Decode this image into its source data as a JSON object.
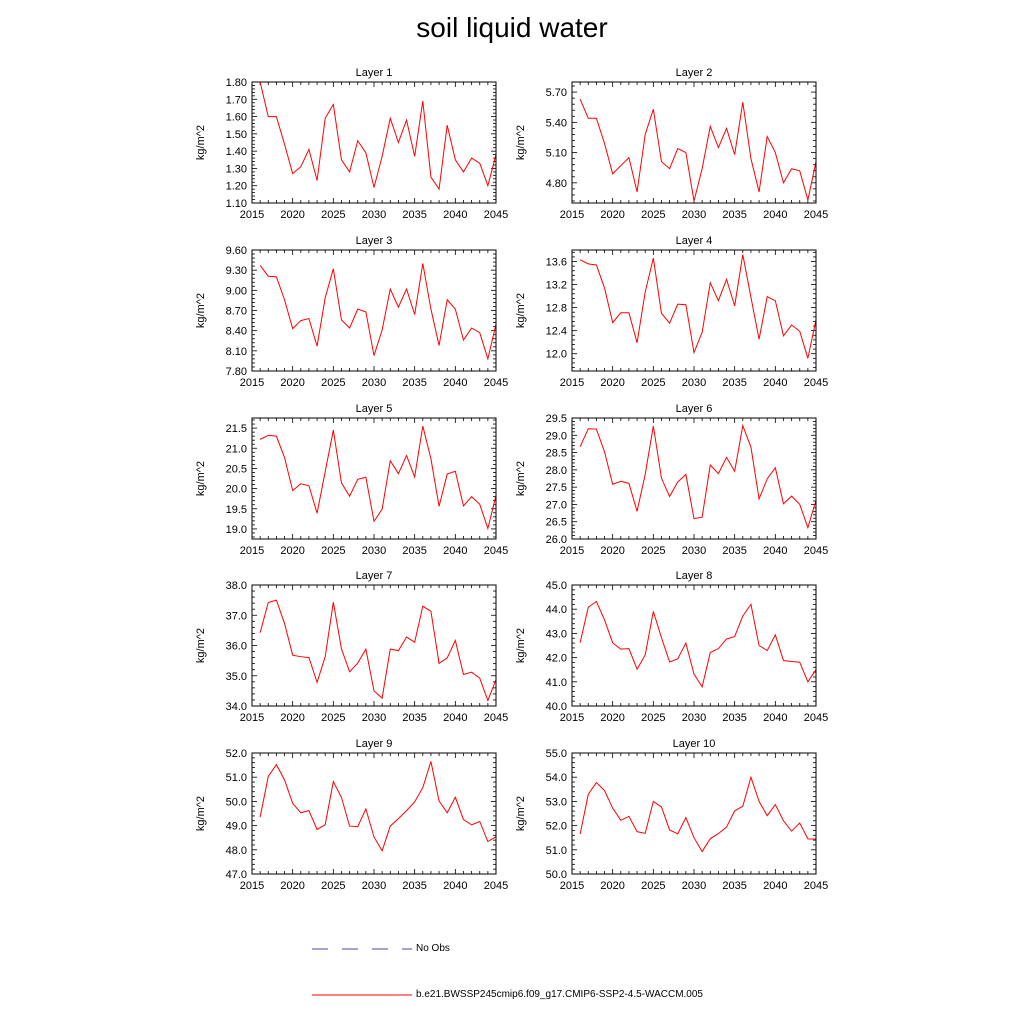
{
  "title": "soil liquid water",
  "legend": {
    "entries": [
      {
        "label": "No Obs",
        "color": "#4a4a9a",
        "style": "dashed"
      },
      {
        "label": "b.e21.BWSSP245cmip6.f09_g17.CMIP6-SSP2-4.5-WACCM.005",
        "color": "#ff0000",
        "style": "solid"
      }
    ]
  },
  "chart_data": [
    {
      "type": "line",
      "title": "Layer 1",
      "ylabel": "kg/m^2",
      "xlim": [
        2015,
        2045
      ],
      "ylim": [
        1.1,
        1.8
      ],
      "yticks": [
        "1.10",
        "1.20",
        "1.30",
        "1.40",
        "1.50",
        "1.60",
        "1.70",
        "1.80"
      ],
      "ytick_values": [
        1.1,
        1.2,
        1.3,
        1.4,
        1.5,
        1.6,
        1.7,
        1.8
      ],
      "xticks": [
        "2015",
        "2020",
        "2025",
        "2030",
        "2035",
        "2040",
        "2045"
      ],
      "xtick_values": [
        2015,
        2020,
        2025,
        2030,
        2035,
        2040,
        2045
      ],
      "x": [
        2016,
        2017,
        2018,
        2019,
        2020,
        2021,
        2022,
        2023,
        2024,
        2025,
        2026,
        2027,
        2028,
        2029,
        2030,
        2031,
        2032,
        2033,
        2034,
        2035,
        2036,
        2037,
        2038,
        2039,
        2040,
        2041,
        2042,
        2043,
        2044,
        2045
      ],
      "series": [
        {
          "color": "#ff0000",
          "values": [
            1.8,
            1.6,
            1.6,
            1.44,
            1.27,
            1.31,
            1.41,
            1.23,
            1.59,
            1.67,
            1.35,
            1.28,
            1.46,
            1.39,
            1.19,
            1.37,
            1.59,
            1.45,
            1.58,
            1.37,
            1.69,
            1.25,
            1.18,
            1.55,
            1.35,
            1.28,
            1.36,
            1.33,
            1.2,
            1.38
          ]
        }
      ]
    },
    {
      "type": "line",
      "title": "Layer 2",
      "ylabel": "kg/m^2",
      "xlim": [
        2015,
        2045
      ],
      "ylim": [
        4.6,
        5.8
      ],
      "yticks": [
        "4.80",
        "5.10",
        "5.40",
        "5.70"
      ],
      "ytick_values": [
        4.8,
        5.1,
        5.4,
        5.7
      ],
      "xticks": [
        "2015",
        "2020",
        "2025",
        "2030",
        "2035",
        "2040",
        "2045"
      ],
      "xtick_values": [
        2015,
        2020,
        2025,
        2030,
        2035,
        2040,
        2045
      ],
      "x": [
        2016,
        2017,
        2018,
        2019,
        2020,
        2021,
        2022,
        2023,
        2024,
        2025,
        2026,
        2027,
        2028,
        2029,
        2030,
        2031,
        2032,
        2033,
        2034,
        2035,
        2036,
        2037,
        2038,
        2039,
        2040,
        2041,
        2042,
        2043,
        2044,
        2045
      ],
      "series": [
        {
          "color": "#ff0000",
          "values": [
            5.63,
            5.44,
            5.44,
            5.19,
            4.89,
            4.97,
            5.05,
            4.71,
            5.28,
            5.53,
            5.01,
            4.94,
            5.14,
            5.1,
            4.62,
            4.94,
            5.36,
            5.15,
            5.34,
            5.08,
            5.6,
            5.04,
            4.71,
            5.26,
            5.1,
            4.8,
            4.94,
            4.92,
            4.63,
            5.01
          ]
        }
      ]
    },
    {
      "type": "line",
      "title": "Layer 3",
      "ylabel": "kg/m^2",
      "xlim": [
        2015,
        2045
      ],
      "ylim": [
        7.8,
        9.6
      ],
      "yticks": [
        "7.80",
        "8.10",
        "8.40",
        "8.70",
        "9.00",
        "9.30",
        "9.60"
      ],
      "ytick_values": [
        7.8,
        8.1,
        8.4,
        8.7,
        9.0,
        9.3,
        9.6
      ],
      "xticks": [
        "2015",
        "2020",
        "2025",
        "2030",
        "2035",
        "2040",
        "2045"
      ],
      "xtick_values": [
        2015,
        2020,
        2025,
        2030,
        2035,
        2040,
        2045
      ],
      "x": [
        2016,
        2017,
        2018,
        2019,
        2020,
        2021,
        2022,
        2023,
        2024,
        2025,
        2026,
        2027,
        2028,
        2029,
        2030,
        2031,
        2032,
        2033,
        2034,
        2035,
        2036,
        2037,
        2038,
        2039,
        2040,
        2041,
        2042,
        2043,
        2044,
        2045
      ],
      "series": [
        {
          "color": "#ff0000",
          "values": [
            9.37,
            9.21,
            9.2,
            8.86,
            8.43,
            8.55,
            8.58,
            8.17,
            8.89,
            9.32,
            8.56,
            8.44,
            8.72,
            8.68,
            8.03,
            8.41,
            9.02,
            8.75,
            9.02,
            8.64,
            9.4,
            8.72,
            8.18,
            8.86,
            8.72,
            8.26,
            8.44,
            8.37,
            7.98,
            8.5
          ]
        }
      ]
    },
    {
      "type": "line",
      "title": "Layer 4",
      "ylabel": "kg/m^2",
      "xlim": [
        2015,
        2045
      ],
      "ylim": [
        11.7,
        13.8
      ],
      "yticks": [
        "12.0",
        "12.4",
        "12.8",
        "13.2",
        "13.6"
      ],
      "ytick_values": [
        12.0,
        12.4,
        12.8,
        13.2,
        13.6
      ],
      "xticks": [
        "2015",
        "2020",
        "2025",
        "2030",
        "2035",
        "2040",
        "2045"
      ],
      "xtick_values": [
        2015,
        2020,
        2025,
        2030,
        2035,
        2040,
        2045
      ],
      "x": [
        2016,
        2017,
        2018,
        2019,
        2020,
        2021,
        2022,
        2023,
        2024,
        2025,
        2026,
        2027,
        2028,
        2029,
        2030,
        2031,
        2032,
        2033,
        2034,
        2035,
        2036,
        2037,
        2038,
        2039,
        2040,
        2041,
        2042,
        2043,
        2044,
        2045
      ],
      "series": [
        {
          "color": "#ff0000",
          "values": [
            13.63,
            13.56,
            13.54,
            13.14,
            12.54,
            12.71,
            12.71,
            12.19,
            13.07,
            13.66,
            12.7,
            12.53,
            12.86,
            12.85,
            12.02,
            12.37,
            13.23,
            12.92,
            13.29,
            12.83,
            13.72,
            12.98,
            12.25,
            12.99,
            12.92,
            12.31,
            12.5,
            12.39,
            11.92,
            12.59
          ]
        }
      ]
    },
    {
      "type": "line",
      "title": "Layer 5",
      "ylabel": "kg/m^2",
      "xlim": [
        2015,
        2045
      ],
      "ylim": [
        18.75,
        21.75
      ],
      "yticks": [
        "19.0",
        "19.5",
        "20.0",
        "20.5",
        "21.0",
        "21.5"
      ],
      "ytick_values": [
        19.0,
        19.5,
        20.0,
        20.5,
        21.0,
        21.5
      ],
      "xticks": [
        "2015",
        "2020",
        "2025",
        "2030",
        "2035",
        "2040",
        "2045"
      ],
      "xtick_values": [
        2015,
        2020,
        2025,
        2030,
        2035,
        2040,
        2045
      ],
      "x": [
        2016,
        2017,
        2018,
        2019,
        2020,
        2021,
        2022,
        2023,
        2024,
        2025,
        2026,
        2027,
        2028,
        2029,
        2030,
        2031,
        2032,
        2033,
        2034,
        2035,
        2036,
        2037,
        2038,
        2039,
        2040,
        2041,
        2042,
        2043,
        2044,
        2045
      ],
      "series": [
        {
          "color": "#ff0000",
          "values": [
            21.22,
            21.32,
            21.3,
            20.77,
            19.95,
            20.12,
            20.07,
            19.39,
            20.42,
            21.45,
            20.14,
            19.81,
            20.23,
            20.28,
            19.19,
            19.49,
            20.69,
            20.37,
            20.82,
            20.29,
            21.55,
            20.74,
            19.56,
            20.36,
            20.43,
            19.57,
            19.8,
            19.61,
            19.01,
            19.83
          ]
        }
      ]
    },
    {
      "type": "line",
      "title": "Layer 6",
      "ylabel": "kg/m^2",
      "xlim": [
        2015,
        2045
      ],
      "ylim": [
        26.0,
        29.5
      ],
      "yticks": [
        "26.0",
        "26.5",
        "27.0",
        "27.5",
        "28.0",
        "28.5",
        "29.0",
        "29.5"
      ],
      "ytick_values": [
        26.0,
        26.5,
        27.0,
        27.5,
        28.0,
        28.5,
        29.0,
        29.5
      ],
      "xticks": [
        "2015",
        "2020",
        "2025",
        "2030",
        "2035",
        "2040",
        "2045"
      ],
      "xtick_values": [
        2015,
        2020,
        2025,
        2030,
        2035,
        2040,
        2045
      ],
      "x": [
        2016,
        2017,
        2018,
        2019,
        2020,
        2021,
        2022,
        2023,
        2024,
        2025,
        2026,
        2027,
        2028,
        2029,
        2030,
        2031,
        2032,
        2033,
        2034,
        2035,
        2036,
        2037,
        2038,
        2039,
        2040,
        2041,
        2042,
        2043,
        2044,
        2045
      ],
      "series": [
        {
          "color": "#ff0000",
          "values": [
            28.67,
            29.19,
            29.18,
            28.52,
            27.58,
            27.67,
            27.61,
            26.8,
            27.87,
            29.27,
            27.76,
            27.23,
            27.65,
            27.87,
            26.59,
            26.63,
            28.14,
            27.89,
            28.36,
            27.96,
            29.28,
            28.66,
            27.16,
            27.74,
            28.06,
            27.02,
            27.24,
            27.0,
            26.33,
            27.12
          ]
        }
      ]
    },
    {
      "type": "line",
      "title": "Layer 7",
      "ylabel": "kg/m^2",
      "xlim": [
        2015,
        2045
      ],
      "ylim": [
        34.0,
        38.0
      ],
      "yticks": [
        "34.0",
        "35.0",
        "36.0",
        "37.0",
        "38.0"
      ],
      "ytick_values": [
        34.0,
        35.0,
        36.0,
        37.0,
        38.0
      ],
      "xticks": [
        "2015",
        "2020",
        "2025",
        "2030",
        "2035",
        "2040",
        "2045"
      ],
      "xtick_values": [
        2015,
        2020,
        2025,
        2030,
        2035,
        2040,
        2045
      ],
      "x": [
        2016,
        2017,
        2018,
        2019,
        2020,
        2021,
        2022,
        2023,
        2024,
        2025,
        2026,
        2027,
        2028,
        2029,
        2030,
        2031,
        2032,
        2033,
        2034,
        2035,
        2036,
        2037,
        2038,
        2039,
        2040,
        2041,
        2042,
        2043,
        2044,
        2045
      ],
      "series": [
        {
          "color": "#ff0000",
          "values": [
            36.42,
            37.42,
            37.5,
            36.73,
            35.68,
            35.63,
            35.6,
            34.78,
            35.63,
            37.43,
            35.89,
            35.13,
            35.42,
            35.88,
            34.5,
            34.26,
            35.88,
            35.83,
            36.28,
            36.11,
            37.3,
            37.13,
            35.41,
            35.59,
            36.17,
            35.04,
            35.12,
            34.92,
            34.18,
            34.87
          ]
        }
      ]
    },
    {
      "type": "line",
      "title": "Layer 8",
      "ylabel": "kg/m^2",
      "xlim": [
        2015,
        2045
      ],
      "ylim": [
        40.0,
        45.0
      ],
      "yticks": [
        "40.0",
        "41.0",
        "42.0",
        "43.0",
        "44.0",
        "45.0"
      ],
      "ytick_values": [
        40.0,
        41.0,
        42.0,
        43.0,
        44.0,
        45.0
      ],
      "xticks": [
        "2015",
        "2020",
        "2025",
        "2030",
        "2035",
        "2040",
        "2045"
      ],
      "xtick_values": [
        2015,
        2020,
        2025,
        2030,
        2035,
        2040,
        2045
      ],
      "x": [
        2016,
        2017,
        2018,
        2019,
        2020,
        2021,
        2022,
        2023,
        2024,
        2025,
        2026,
        2027,
        2028,
        2029,
        2030,
        2031,
        2032,
        2033,
        2034,
        2035,
        2036,
        2037,
        2038,
        2039,
        2040,
        2041,
        2042,
        2043,
        2044,
        2045
      ],
      "series": [
        {
          "color": "#ff0000",
          "values": [
            42.62,
            44.08,
            44.32,
            43.56,
            42.61,
            42.35,
            42.37,
            41.52,
            42.11,
            43.91,
            42.82,
            41.82,
            41.95,
            42.6,
            41.32,
            40.79,
            42.21,
            42.37,
            42.77,
            42.87,
            43.72,
            44.2,
            42.5,
            42.29,
            42.94,
            41.88,
            41.84,
            41.81,
            41.0,
            41.5
          ]
        }
      ]
    },
    {
      "type": "line",
      "title": "Layer 9",
      "ylabel": "kg/m^2",
      "xlim": [
        2015,
        2045
      ],
      "ylim": [
        47.0,
        52.0
      ],
      "yticks": [
        "47.0",
        "48.0",
        "49.0",
        "50.0",
        "51.0",
        "52.0"
      ],
      "ytick_values": [
        47.0,
        48.0,
        49.0,
        50.0,
        51.0,
        52.0
      ],
      "xticks": [
        "2015",
        "2020",
        "2025",
        "2030",
        "2035",
        "2040",
        "2045"
      ],
      "xtick_values": [
        2015,
        2020,
        2025,
        2030,
        2035,
        2040,
        2045
      ],
      "x": [
        2016,
        2017,
        2018,
        2019,
        2020,
        2021,
        2022,
        2023,
        2024,
        2025,
        2026,
        2027,
        2028,
        2029,
        2030,
        2031,
        2032,
        2033,
        2034,
        2035,
        2036,
        2037,
        2038,
        2039,
        2040,
        2041,
        2042,
        2043,
        2044,
        2045
      ],
      "series": [
        {
          "color": "#ff0000",
          "values": [
            49.35,
            51.03,
            51.52,
            50.89,
            49.92,
            49.53,
            49.62,
            48.84,
            49.04,
            50.82,
            50.16,
            48.98,
            48.96,
            49.69,
            48.53,
            47.96,
            48.98,
            49.29,
            49.62,
            49.98,
            50.57,
            51.65,
            50.02,
            49.53,
            50.17,
            49.25,
            49.03,
            49.17,
            48.34,
            48.54
          ]
        }
      ]
    },
    {
      "type": "line",
      "title": "Layer 10",
      "ylabel": "kg/m^2",
      "xlim": [
        2015,
        2045
      ],
      "ylim": [
        50.0,
        55.0
      ],
      "yticks": [
        "50.0",
        "51.0",
        "52.0",
        "53.0",
        "54.0",
        "55.0"
      ],
      "ytick_values": [
        50.0,
        51.0,
        52.0,
        53.0,
        54.0,
        55.0
      ],
      "xticks": [
        "2015",
        "2020",
        "2025",
        "2030",
        "2035",
        "2040",
        "2045"
      ],
      "xtick_values": [
        2015,
        2020,
        2025,
        2030,
        2035,
        2040,
        2045
      ],
      "x": [
        2016,
        2017,
        2018,
        2019,
        2020,
        2021,
        2022,
        2023,
        2024,
        2025,
        2026,
        2027,
        2028,
        2029,
        2030,
        2031,
        2032,
        2033,
        2034,
        2035,
        2036,
        2037,
        2038,
        2039,
        2040,
        2041,
        2042,
        2043,
        2044,
        2045
      ],
      "series": [
        {
          "color": "#ff0000",
          "values": [
            51.65,
            53.29,
            53.78,
            53.45,
            52.72,
            52.22,
            52.38,
            51.75,
            51.68,
            53.0,
            52.77,
            51.82,
            51.66,
            52.33,
            51.5,
            50.93,
            51.46,
            51.67,
            51.94,
            52.61,
            52.8,
            54.0,
            53.0,
            52.41,
            52.87,
            52.2,
            51.77,
            52.11,
            51.45,
            51.44
          ]
        }
      ]
    }
  ]
}
